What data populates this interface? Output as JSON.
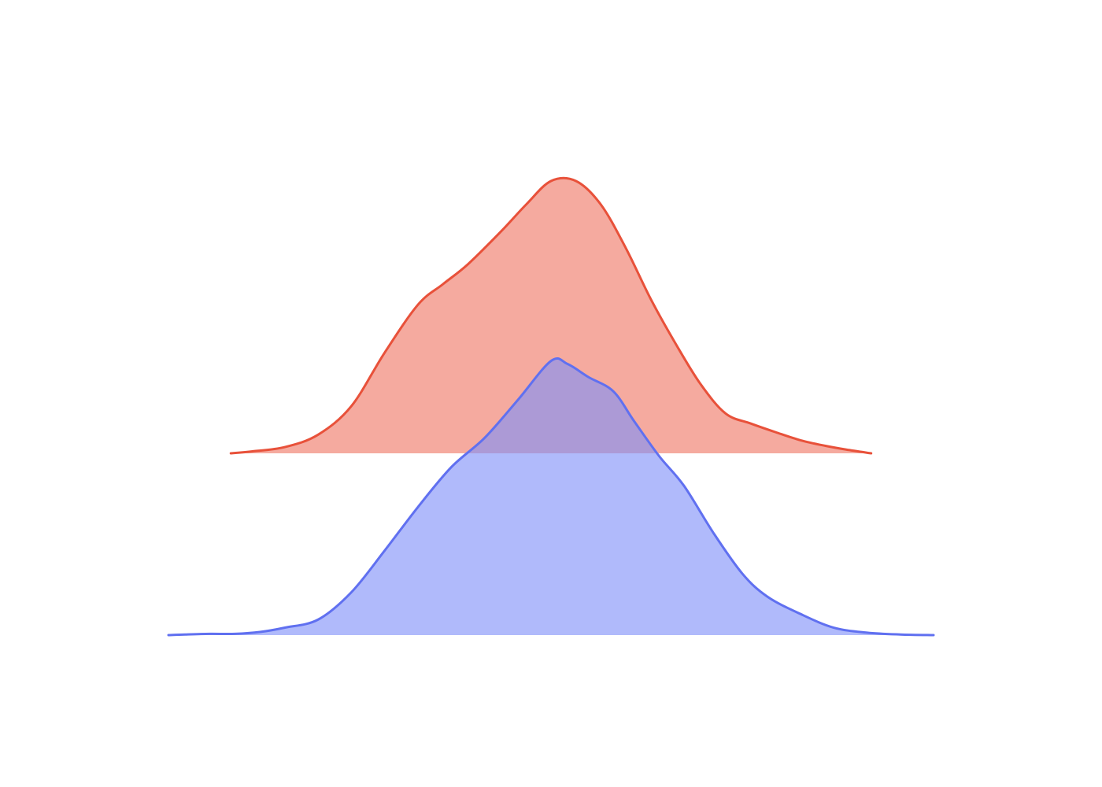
{
  "chart_data": {
    "type": "area",
    "subtype": "ridgeline-density",
    "title": "",
    "xlabel": "",
    "ylabel": "",
    "axes_visible": false,
    "grid": false,
    "legend": "none",
    "xlim": [
      -4.6,
      4.6
    ],
    "density_max": 0.45,
    "series": [
      {
        "stack_index": 1,
        "line_color": "#e8513a",
        "fill_color": "#f08070",
        "fill_opacity": 0.67,
        "x": [
          -3.85,
          -3.6,
          -3.2,
          -2.8,
          -2.4,
          -2.0,
          -1.6,
          -1.3,
          -1.0,
          -0.6,
          -0.3,
          0.0,
          0.3,
          0.6,
          0.9,
          1.2,
          1.5,
          1.8,
          2.1,
          2.4,
          2.7,
          3.0,
          3.3,
          3.55,
          3.85
        ],
        "y": [
          0.0,
          0.003,
          0.01,
          0.03,
          0.076,
          0.162,
          0.239,
          0.272,
          0.304,
          0.357,
          0.4,
          0.438,
          0.438,
          0.4,
          0.33,
          0.248,
          0.176,
          0.111,
          0.064,
          0.048,
          0.034,
          0.021,
          0.012,
          0.006,
          0.0
        ]
      },
      {
        "stack_index": 0,
        "line_color": "#6070f0",
        "fill_color": "#8090f8",
        "fill_opacity": 0.62,
        "x": [
          -4.6,
          -4.4,
          -4.1,
          -3.8,
          -3.5,
          -3.2,
          -2.8,
          -2.4,
          -2.0,
          -1.6,
          -1.2,
          -0.8,
          -0.4,
          0.0,
          0.2,
          0.45,
          0.75,
          1.0,
          1.3,
          1.6,
          1.95,
          2.3,
          2.6,
          3.0,
          3.4,
          3.8,
          4.2,
          4.6
        ],
        "y": [
          0.0,
          0.001,
          0.002,
          0.002,
          0.005,
          0.012,
          0.025,
          0.069,
          0.136,
          0.206,
          0.27,
          0.317,
          0.378,
          0.441,
          0.436,
          0.415,
          0.392,
          0.344,
          0.288,
          0.24,
          0.165,
          0.099,
          0.062,
          0.034,
          0.012,
          0.004,
          0.001,
          0.0
        ]
      }
    ]
  }
}
